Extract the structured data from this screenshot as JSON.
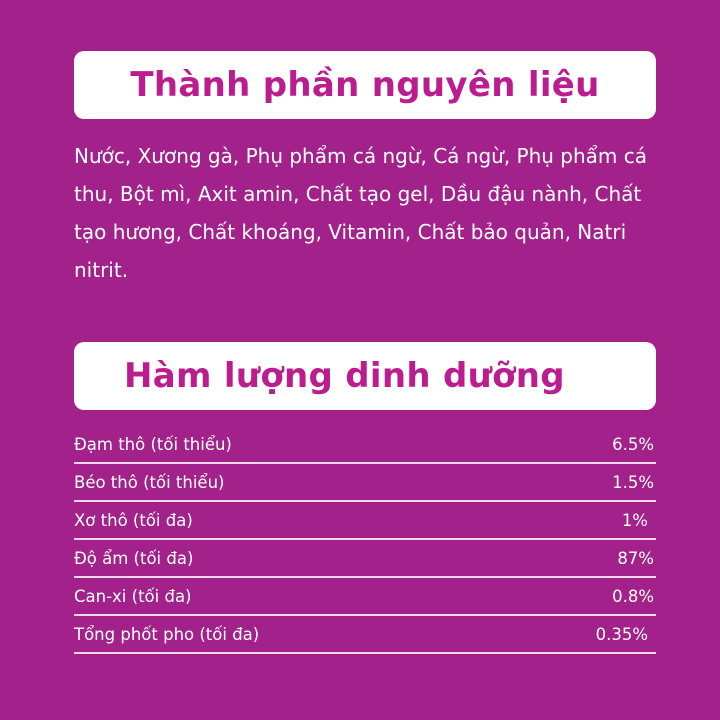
{
  "ingredients_section": {
    "title": "Thành phần nguyên liệu",
    "text": "Nước, Xương gà, Phụ phẩm cá ngừ, Cá ngừ, Phụ phẩm cá thu, Bột mì, Axit amin, Chất tạo gel, Dầu đậu nành, Chất tạo hương, Chất khoáng, Vitamin, Chất bảo quản, Natri nitrit."
  },
  "nutrition_section": {
    "title": "Hàm lượng dinh dưỡng",
    "rows": [
      {
        "label": "Đạm thô (tối thiểu)",
        "value": "6.5%"
      },
      {
        "label": "Béo thô (tối thiểu)",
        "value": "1.5%"
      },
      {
        "label": "Xơ thô (tối đa)",
        "value": "1%"
      },
      {
        "label": "Độ ẩm (tối đa)",
        "value": "87%"
      },
      {
        "label": "Can-xi (tối đa)",
        "value": "0.8%"
      },
      {
        "label": "Tổng phốt pho (tối đa)",
        "value": "0.35%"
      }
    ]
  },
  "colors": {
    "background": "#a2218b",
    "title": "#bb1d8f",
    "box": "#ffffff"
  }
}
